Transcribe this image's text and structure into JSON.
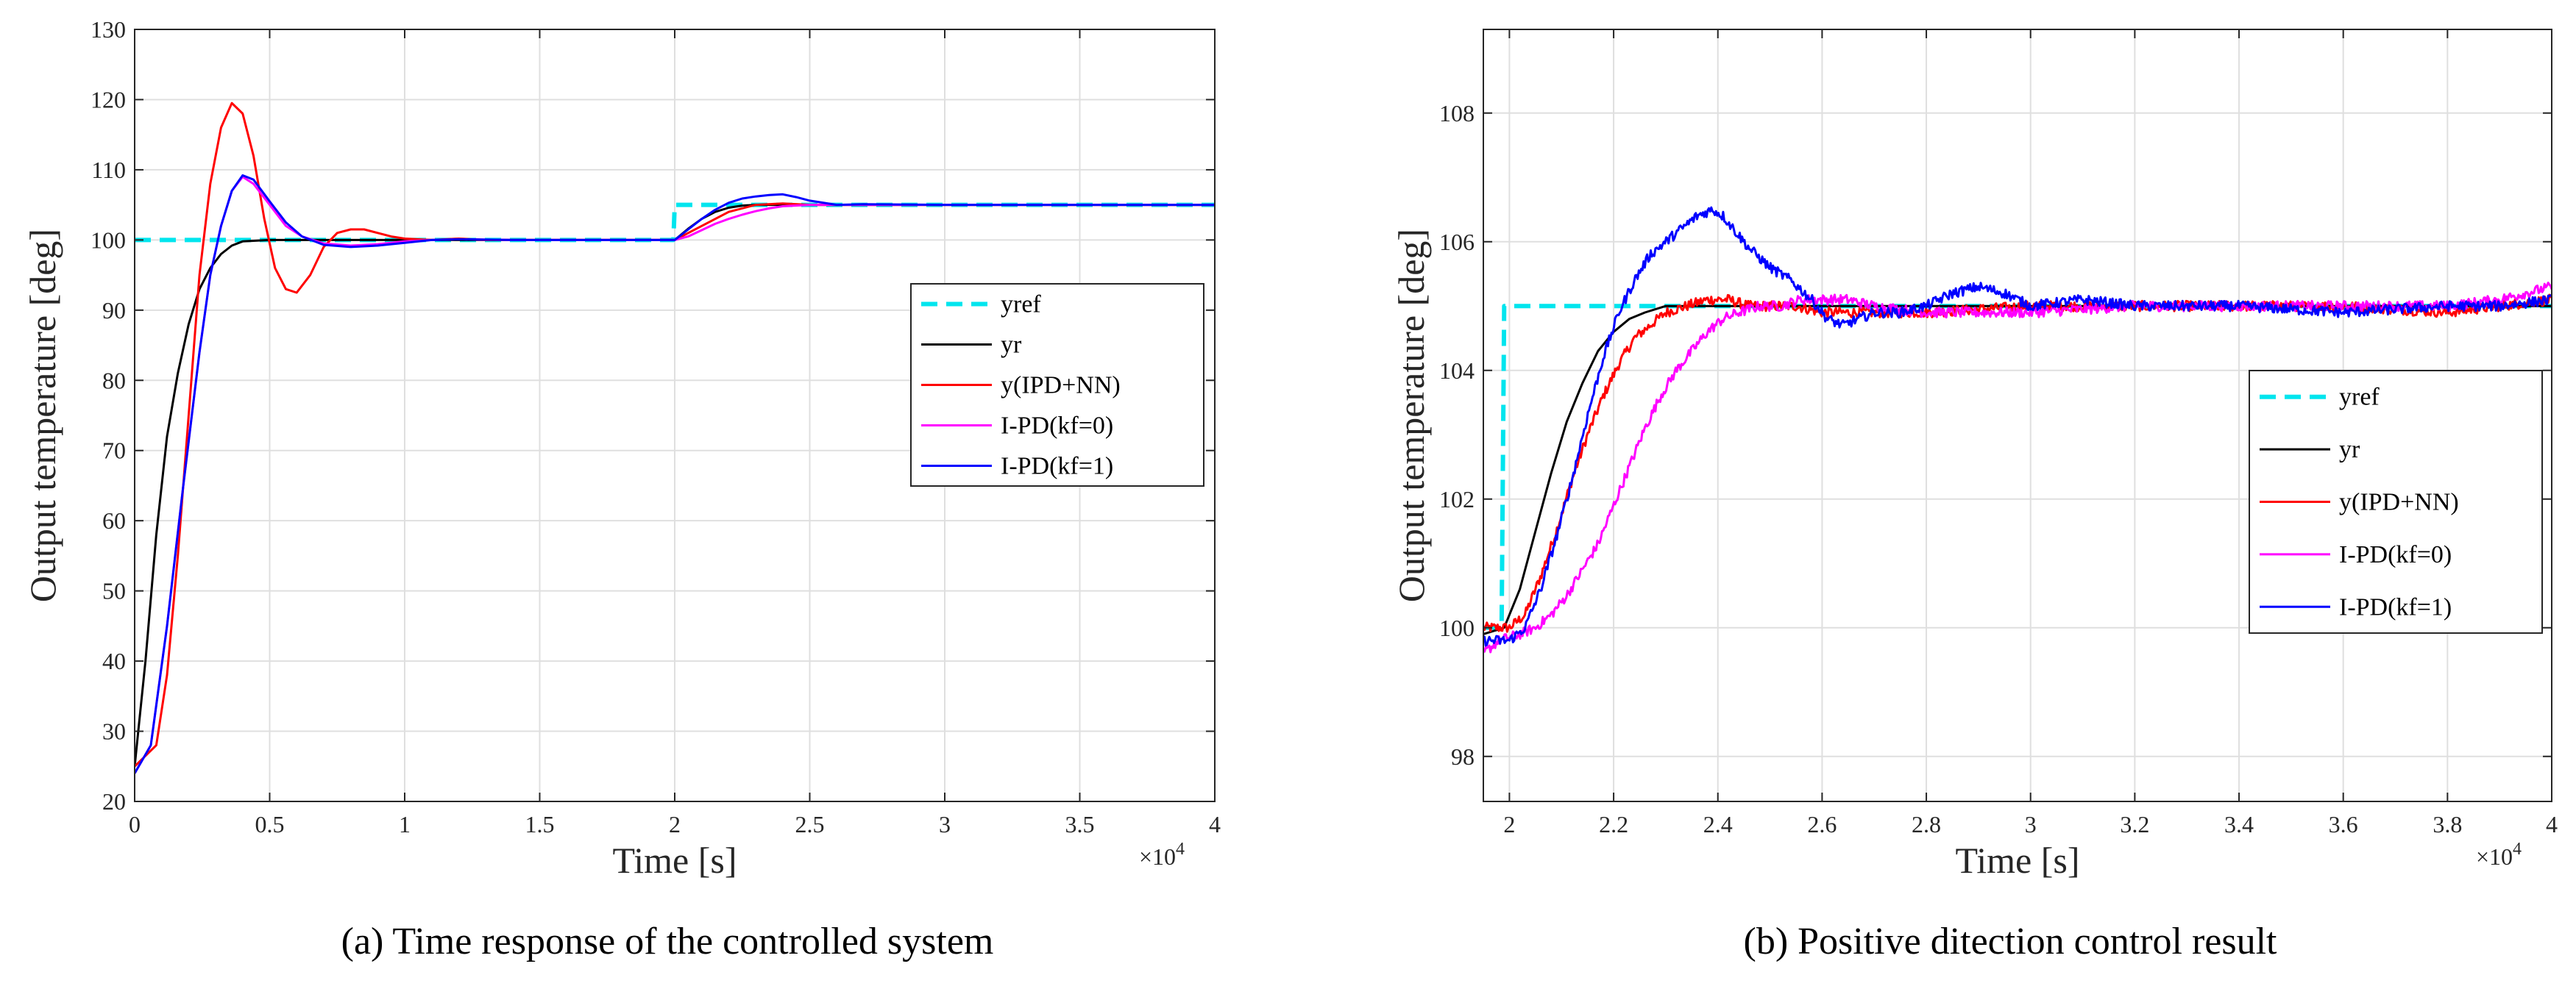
{
  "chart_data": [
    {
      "type": "line",
      "caption": "(a) Time response of the controlled system",
      "xlabel": "Time [s]",
      "ylabel": "Output temperature [deg]",
      "x_multiplier": "×10^4",
      "x_multiplier_base": "×10",
      "x_multiplier_exp": "4",
      "xlim": [
        0,
        40000
      ],
      "ylim": [
        20,
        130
      ],
      "xticks": [
        0,
        5000,
        10000,
        15000,
        20000,
        25000,
        30000,
        35000,
        40000
      ],
      "xtick_labels": [
        "0",
        "0.5",
        "1",
        "1.5",
        "2",
        "2.5",
        "3",
        "3.5",
        "4"
      ],
      "yticks": [
        20,
        30,
        40,
        50,
        60,
        70,
        80,
        90,
        100,
        110,
        120,
        130
      ],
      "ytick_labels": [
        "20",
        "30",
        "40",
        "50",
        "60",
        "70",
        "80",
        "90",
        "100",
        "110",
        "120",
        "130"
      ],
      "grid": true,
      "legend_position": "right",
      "series": [
        {
          "name": "yref",
          "color": "#00e5ee",
          "dash": true,
          "noise": 0,
          "x": [
            0,
            19950,
            20000,
            40000
          ],
          "y": [
            100,
            100,
            105,
            105
          ]
        },
        {
          "name": "yr",
          "color": "#000000",
          "dash": false,
          "noise": 0,
          "x": [
            0,
            400,
            800,
            1200,
            1600,
            2000,
            2400,
            2800,
            3200,
            3600,
            4000,
            5000,
            6000,
            8000,
            10000,
            15000,
            20000,
            20500,
            21000,
            21500,
            22000,
            22500,
            23000,
            24000,
            26000,
            30000,
            40000
          ],
          "y": [
            25,
            40,
            58,
            72,
            81,
            88,
            93,
            96,
            98,
            99.2,
            99.8,
            100,
            100,
            100,
            100,
            100,
            100,
            101.6,
            103,
            104,
            104.6,
            104.9,
            105,
            105,
            105,
            105,
            105
          ]
        },
        {
          "name": "y(IPD+NN)",
          "color": "#ff0000",
          "dash": false,
          "noise": 0,
          "x": [
            0,
            800,
            1200,
            1600,
            2000,
            2400,
            2800,
            3200,
            3600,
            4000,
            4400,
            4800,
            5200,
            5600,
            6000,
            6500,
            7000,
            7500,
            8000,
            8500,
            9000,
            9500,
            10000,
            11000,
            12000,
            13000,
            14000,
            15000,
            17000,
            20000,
            21000,
            22000,
            23000,
            24000,
            25000,
            26000,
            30000,
            40000
          ],
          "y": [
            25,
            28,
            38,
            55,
            75,
            95,
            108,
            116,
            119.5,
            118,
            112,
            103,
            96,
            93,
            92.5,
            95,
            99,
            101,
            101.5,
            101.5,
            101,
            100.5,
            100.2,
            100,
            100.2,
            100,
            100,
            100,
            100,
            100,
            102,
            104,
            105,
            105.2,
            105,
            105,
            105,
            105
          ]
        },
        {
          "name": "I-PD(kf=0)",
          "color": "#ff00ff",
          "dash": false,
          "noise": 0,
          "x": [
            0,
            600,
            1200,
            1800,
            2400,
            2800,
            3200,
            3600,
            4000,
            4400,
            5000,
            5600,
            6200,
            7000,
            8000,
            9000,
            10000,
            11000,
            12000,
            14000,
            16000,
            20000,
            20500,
            21000,
            21500,
            22000,
            22500,
            23000,
            23500,
            24000,
            25000,
            26000,
            30000,
            40000
          ],
          "y": [
            24,
            28,
            45,
            65,
            84,
            95,
            102,
            107,
            109,
            108,
            105,
            102,
            100.5,
            99.5,
            99.2,
            99.4,
            99.8,
            100,
            100.1,
            100,
            100,
            100,
            100.5,
            101.4,
            102.3,
            103,
            103.6,
            104.1,
            104.5,
            104.8,
            105,
            105,
            105,
            105
          ]
        },
        {
          "name": "I-PD(kf=1)",
          "color": "#0000ff",
          "dash": false,
          "noise": 0,
          "x": [
            0,
            600,
            1200,
            1800,
            2400,
            2800,
            3200,
            3600,
            4000,
            4400,
            5000,
            5600,
            6200,
            7000,
            8000,
            9000,
            10000,
            11000,
            12000,
            14000,
            16000,
            20000,
            20500,
            21000,
            21500,
            22000,
            22500,
            23000,
            23500,
            24000,
            24500,
            25000,
            26000,
            27000,
            30000,
            40000
          ],
          "y": [
            24,
            28,
            45,
            65,
            84,
            95,
            102,
            107,
            109.2,
            108.6,
            105.5,
            102.5,
            100.5,
            99.3,
            99,
            99.2,
            99.6,
            100,
            100.1,
            100,
            100,
            100,
            101.5,
            103,
            104.3,
            105.3,
            105.9,
            106.2,
            106.4,
            106.5,
            106.1,
            105.6,
            105,
            105.1,
            105,
            105
          ]
        }
      ]
    },
    {
      "type": "line",
      "caption": "(b) Positive ditection control result",
      "xlabel": "Time [s]",
      "ylabel": "Output temperature [deg]",
      "x_multiplier": "×10^4",
      "x_multiplier_base": "×10",
      "x_multiplier_exp": "4",
      "xlim": [
        19500,
        40000
      ],
      "ylim": [
        97.3,
        109.3
      ],
      "xticks": [
        20000,
        22000,
        24000,
        26000,
        28000,
        30000,
        32000,
        34000,
        36000,
        38000,
        40000
      ],
      "xtick_labels": [
        "2",
        "2.2",
        "2.4",
        "2.6",
        "2.8",
        "3",
        "3.2",
        "3.4",
        "3.6",
        "3.8",
        "4"
      ],
      "yticks": [
        98,
        100,
        102,
        104,
        106,
        108
      ],
      "ytick_labels": [
        "98",
        "100",
        "102",
        "104",
        "106",
        "108"
      ],
      "grid": true,
      "legend_position": "right",
      "series": [
        {
          "name": "yref",
          "color": "#00e5ee",
          "dash": true,
          "noise": 0,
          "x": [
            19500,
            19850,
            19900,
            40000
          ],
          "y": [
            100,
            100,
            105,
            105
          ]
        },
        {
          "name": "yr",
          "color": "#000000",
          "dash": false,
          "noise": 0,
          "x": [
            19500,
            19900,
            20200,
            20500,
            20800,
            21100,
            21400,
            21700,
            22000,
            22300,
            22600,
            23000,
            23500,
            24000,
            40000
          ],
          "y": [
            99.9,
            100,
            100.6,
            101.5,
            102.4,
            103.2,
            103.8,
            104.3,
            104.6,
            104.8,
            104.9,
            105,
            105,
            105,
            105
          ]
        },
        {
          "name": "y(IPD+NN)",
          "color": "#ff0000",
          "dash": false,
          "noise": 0.08,
          "x": [
            19500,
            20000,
            20300,
            20600,
            20900,
            21200,
            21500,
            21800,
            22100,
            22400,
            22700,
            23000,
            23400,
            23800,
            24200,
            24600,
            25000,
            25500,
            26000,
            27000,
            28000,
            30000,
            32000,
            34000,
            36000,
            38000,
            39000,
            40000
          ],
          "y": [
            100,
            100,
            100.2,
            100.8,
            101.5,
            102.3,
            103,
            103.6,
            104.1,
            104.5,
            104.7,
            104.9,
            105,
            105.1,
            105.1,
            105,
            105,
            105,
            104.9,
            104.9,
            104.9,
            105,
            105,
            105,
            105,
            104.9,
            105,
            105.1
          ]
        },
        {
          "name": "I-PD(kf=0)",
          "color": "#ff00ff",
          "dash": false,
          "noise": 0.08,
          "x": [
            19500,
            19800,
            20200,
            20500,
            20800,
            21100,
            21400,
            21700,
            22000,
            22300,
            22600,
            22900,
            23200,
            23500,
            23800,
            24100,
            24400,
            24800,
            25200,
            25600,
            26000,
            26500,
            27000,
            28000,
            30000,
            32000,
            34000,
            36000,
            38000,
            39000,
            40000
          ],
          "y": [
            99.6,
            99.8,
            99.9,
            100,
            100.2,
            100.5,
            100.9,
            101.3,
            101.9,
            102.5,
            103.1,
            103.6,
            104,
            104.3,
            104.6,
            104.8,
            104.9,
            105,
            105,
            105.1,
            105.1,
            105.1,
            105,
            104.9,
            104.9,
            105,
            105,
            105,
            105,
            105.1,
            105.3
          ]
        },
        {
          "name": "I-PD(kf=1)",
          "color": "#0000ff",
          "dash": false,
          "noise": 0.08,
          "x": [
            19500,
            20000,
            20300,
            20600,
            20900,
            21200,
            21500,
            21800,
            22100,
            22400,
            22700,
            23000,
            23300,
            23600,
            23900,
            24100,
            24300,
            24600,
            25000,
            25400,
            25800,
            26100,
            26400,
            26700,
            27000,
            27500,
            28000,
            28500,
            29000,
            29500,
            30000,
            31000,
            32000,
            34000,
            36000,
            38000,
            39000,
            40000
          ],
          "y": [
            99.8,
            99.8,
            100,
            100.6,
            101.4,
            102.3,
            103.3,
            104.2,
            104.9,
            105.4,
            105.8,
            106,
            106.2,
            106.4,
            106.5,
            106.4,
            106.2,
            105.9,
            105.6,
            105.4,
            105.1,
            104.8,
            104.7,
            104.8,
            104.9,
            104.9,
            105,
            105.2,
            105.3,
            105.2,
            105,
            105.1,
            105,
            105,
            104.9,
            105,
            105,
            105.1
          ]
        }
      ]
    }
  ]
}
